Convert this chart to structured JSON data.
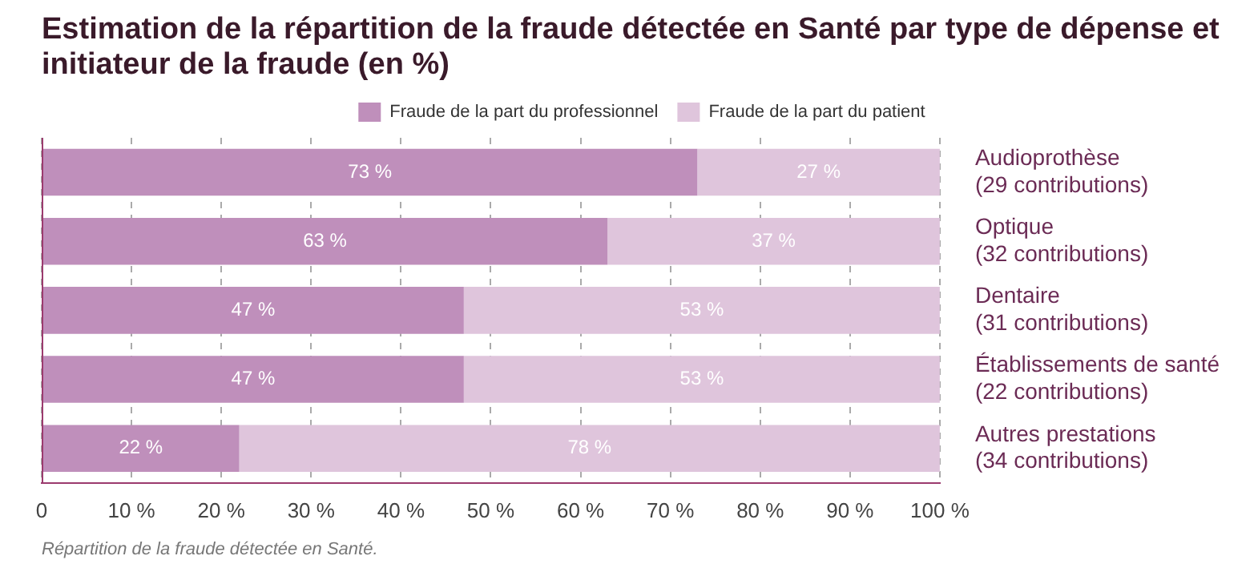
{
  "chart_data": {
    "type": "bar",
    "orientation": "horizontal",
    "stacked": true,
    "title": "Estimation de la répartition de la fraude détectée en Santé par type de dépense et initiateur de la fraude (en %)",
    "categories": [
      "Audioprothèse\n(29 contributions)",
      "Optique\n(32 contributions)",
      "Dentaire\n(31 contributions)",
      "Établissements de santé\n(22 contributions)",
      "Autres prestations\n(34 contributions)"
    ],
    "series": [
      {
        "name": "Fraude de la part du professionnel",
        "color": "#bf8fbb",
        "values": [
          73,
          63,
          47,
          47,
          22
        ],
        "value_labels": [
          "73 %",
          "63 %",
          "47 %",
          "47 %",
          "22 %"
        ]
      },
      {
        "name": "Fraude de la part du patient",
        "color": "#dfc5dc",
        "values": [
          27,
          37,
          53,
          53,
          78
        ],
        "value_labels": [
          "27 %",
          "37 %",
          "53 %",
          "53 %",
          "78 %"
        ]
      }
    ],
    "xlim": [
      0,
      100
    ],
    "xticks": [
      0,
      {
        "value": 10,
        "label": "10 %"
      },
      {
        "value": 20,
        "label": "20 %"
      },
      {
        "value": 30,
        "label": "30 %"
      },
      {
        "value": 40,
        "label": "40 %"
      },
      {
        "value": 50,
        "label": "50 %"
      },
      {
        "value": 60,
        "label": "60 %"
      },
      {
        "value": 70,
        "label": "70 %"
      },
      {
        "value": 80,
        "label": "80 %"
      },
      {
        "value": 90,
        "label": "90 %"
      },
      {
        "value": 100,
        "label": "100 %"
      }
    ],
    "grid": "x",
    "legend": "top",
    "annotations": [
      "Répartition de la fraude détectée en Santé."
    ]
  }
}
